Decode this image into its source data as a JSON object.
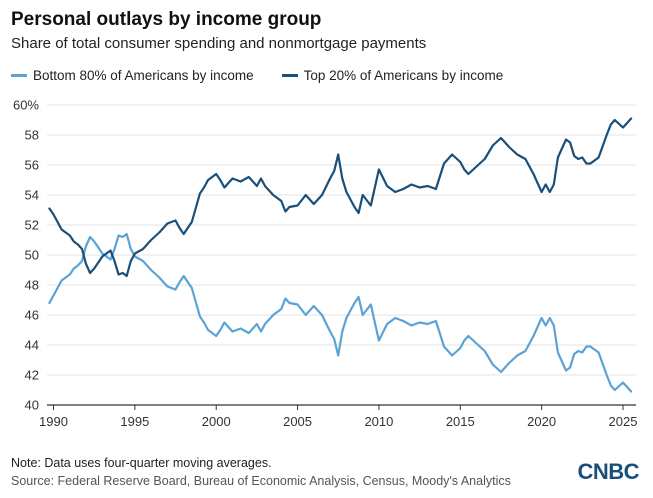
{
  "header": {
    "title": "Personal outlays by income group",
    "subtitle": "Share of total consumer spending and nonmortgage payments"
  },
  "footer": {
    "note": "Note: Data uses four-quarter moving averages.",
    "source": "Source: Federal Reserve Board, Bureau of Economic Analysis, Census, Moody's Analytics",
    "logo": "CNBC"
  },
  "colors": {
    "bottom80": "#5ba3d6",
    "top20": "#1a4f7a",
    "grid": "#e3e3e3",
    "axis": "#333333"
  },
  "chart_data": {
    "type": "line",
    "title": "Personal outlays by income group",
    "xlabel": "",
    "ylabel": "",
    "xlim": [
      1989.6,
      2025.8
    ],
    "ylim": [
      40,
      60
    ],
    "yticks": [
      40,
      42,
      44,
      46,
      48,
      50,
      52,
      54,
      56,
      58,
      60
    ],
    "ytick_labels": [
      "40",
      "42",
      "44",
      "46",
      "48",
      "50",
      "52",
      "54",
      "56",
      "58",
      "60%"
    ],
    "xticks": [
      1990,
      1995,
      2000,
      2005,
      2010,
      2015,
      2020,
      2025
    ],
    "xtick_labels": [
      "1990",
      "1995",
      "2000",
      "2005",
      "2010",
      "2015",
      "2020",
      "2025"
    ],
    "legend_position": "top-left",
    "series": [
      {
        "name": "Bottom 80% of Americans by income",
        "key": "bottom80",
        "x": [
          1989.75,
          1990.0,
          1990.5,
          1990.75,
          1991.0,
          1991.25,
          1991.5,
          1991.75,
          1992.0,
          1992.25,
          1992.5,
          1992.75,
          1993.0,
          1993.25,
          1993.5,
          1993.75,
          1994.0,
          1994.25,
          1994.5,
          1994.75,
          1995.0,
          1995.5,
          1996.0,
          1996.5,
          1997.0,
          1997.5,
          1997.75,
          1998.0,
          1998.25,
          1998.5,
          1999.0,
          1999.25,
          1999.5,
          2000.0,
          2000.25,
          2000.5,
          2000.75,
          2001.0,
          2001.5,
          2002.0,
          2002.5,
          2002.75,
          2003.0,
          2003.5,
          2004.0,
          2004.25,
          2004.5,
          2005.0,
          2005.5,
          2006.0,
          2006.5,
          2007.0,
          2007.25,
          2007.5,
          2007.75,
          2008.0,
          2008.5,
          2008.75,
          2009.0,
          2009.5,
          2010.0,
          2010.5,
          2011.0,
          2011.5,
          2012.0,
          2012.5,
          2013.0,
          2013.5,
          2014.0,
          2014.5,
          2015.0,
          2015.25,
          2015.5,
          2016.0,
          2016.5,
          2017.0,
          2017.5,
          2018.0,
          2018.5,
          2019.0,
          2019.5,
          2020.0,
          2020.25,
          2020.5,
          2020.75,
          2021.0,
          2021.5,
          2021.75,
          2022.0,
          2022.25,
          2022.5,
          2022.75,
          2023.0,
          2023.5,
          2024.0,
          2024.25,
          2024.5,
          2025.0,
          2025.25,
          2025.5
        ],
        "y": [
          46.8,
          47.3,
          48.3,
          48.5,
          48.7,
          49.1,
          49.3,
          49.6,
          50.6,
          51.2,
          50.9,
          50.5,
          50.1,
          49.9,
          49.7,
          50.4,
          51.3,
          51.2,
          51.4,
          50.4,
          49.9,
          49.6,
          49.0,
          48.5,
          47.9,
          47.7,
          48.2,
          48.6,
          48.2,
          47.8,
          45.9,
          45.5,
          45.0,
          44.6,
          45.0,
          45.5,
          45.2,
          44.9,
          45.1,
          44.8,
          45.4,
          44.9,
          45.4,
          46.0,
          46.4,
          47.1,
          46.8,
          46.7,
          46.0,
          46.6,
          46.0,
          44.9,
          44.4,
          43.3,
          44.9,
          45.8,
          46.8,
          47.2,
          46.0,
          46.7,
          44.3,
          45.4,
          45.8,
          45.6,
          45.3,
          45.5,
          45.4,
          45.6,
          43.9,
          43.3,
          43.8,
          44.3,
          44.6,
          44.1,
          43.6,
          42.7,
          42.2,
          42.8,
          43.3,
          43.6,
          44.6,
          45.8,
          45.3,
          45.8,
          45.3,
          43.5,
          42.3,
          42.5,
          43.4,
          43.6,
          43.5,
          43.9,
          43.9,
          43.5,
          42.0,
          41.3,
          41.0,
          41.5,
          41.2,
          40.9
        ]
      },
      {
        "name": "Top 20% of Americans by income",
        "key": "top20",
        "x": [
          1989.75,
          1990.0,
          1990.5,
          1990.75,
          1991.0,
          1991.25,
          1991.5,
          1991.75,
          1992.0,
          1992.25,
          1992.5,
          1992.75,
          1993.0,
          1993.25,
          1993.5,
          1993.75,
          1994.0,
          1994.25,
          1994.5,
          1994.75,
          1995.0,
          1995.5,
          1996.0,
          1996.5,
          1997.0,
          1997.5,
          1997.75,
          1998.0,
          1998.25,
          1998.5,
          1999.0,
          1999.25,
          1999.5,
          2000.0,
          2000.25,
          2000.5,
          2000.75,
          2001.0,
          2001.5,
          2002.0,
          2002.5,
          2002.75,
          2003.0,
          2003.5,
          2004.0,
          2004.25,
          2004.5,
          2005.0,
          2005.5,
          2006.0,
          2006.5,
          2007.0,
          2007.25,
          2007.5,
          2007.75,
          2008.0,
          2008.5,
          2008.75,
          2009.0,
          2009.5,
          2010.0,
          2010.5,
          2011.0,
          2011.5,
          2012.0,
          2012.5,
          2013.0,
          2013.5,
          2014.0,
          2014.5,
          2015.0,
          2015.25,
          2015.5,
          2016.0,
          2016.5,
          2017.0,
          2017.5,
          2018.0,
          2018.5,
          2019.0,
          2019.5,
          2020.0,
          2020.25,
          2020.5,
          2020.75,
          2021.0,
          2021.5,
          2021.75,
          2022.0,
          2022.25,
          2022.5,
          2022.75,
          2023.0,
          2023.5,
          2024.0,
          2024.25,
          2024.5,
          2025.0,
          2025.25,
          2025.5
        ],
        "y": [
          53.1,
          52.7,
          51.7,
          51.5,
          51.3,
          50.9,
          50.7,
          50.4,
          49.4,
          48.8,
          49.1,
          49.5,
          49.9,
          50.1,
          50.3,
          49.6,
          48.7,
          48.8,
          48.6,
          49.6,
          50.1,
          50.4,
          51.0,
          51.5,
          52.1,
          52.3,
          51.8,
          51.4,
          51.8,
          52.2,
          54.1,
          54.5,
          55.0,
          55.4,
          55.0,
          54.5,
          54.8,
          55.1,
          54.9,
          55.2,
          54.6,
          55.1,
          54.6,
          54.0,
          53.6,
          52.9,
          53.2,
          53.3,
          54.0,
          53.4,
          54.0,
          55.1,
          55.6,
          56.7,
          55.1,
          54.2,
          53.2,
          52.8,
          54.0,
          53.3,
          55.7,
          54.6,
          54.2,
          54.4,
          54.7,
          54.5,
          54.6,
          54.4,
          56.1,
          56.7,
          56.2,
          55.7,
          55.4,
          55.9,
          56.4,
          57.3,
          57.8,
          57.2,
          56.7,
          56.4,
          55.4,
          54.2,
          54.7,
          54.2,
          54.7,
          56.5,
          57.7,
          57.5,
          56.6,
          56.4,
          56.5,
          56.1,
          56.1,
          56.5,
          58.0,
          58.7,
          59.0,
          58.5,
          58.8,
          59.1
        ]
      }
    ]
  }
}
